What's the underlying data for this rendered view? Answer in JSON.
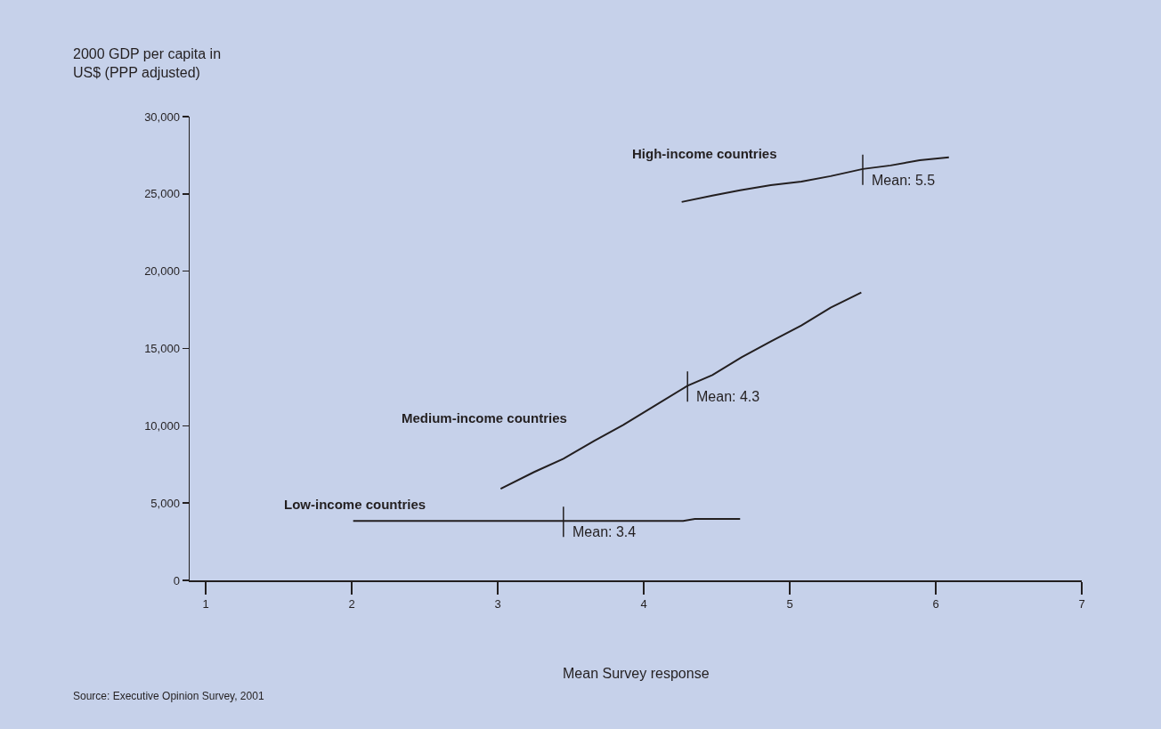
{
  "chart_data": {
    "type": "line",
    "xlabel": "Mean Survey response",
    "ylabel": "2000 GDP per capita in\nUS$ (PPP adjusted)",
    "series": [
      {
        "name": "High-income countries",
        "color": "#231f20",
        "x": [
          4.26,
          4.47,
          4.66,
          4.87,
          5.08,
          5.28,
          5.5,
          5.69,
          5.89,
          6.09
        ],
        "values": [
          24480,
          24890,
          25230,
          25570,
          25800,
          26150,
          26610,
          26840,
          27180,
          27360
        ]
      },
      {
        "name": "Medium-income countries",
        "color": "#231f20",
        "x": [
          3.02,
          3.25,
          3.45,
          3.66,
          3.86,
          4.06,
          4.3,
          4.47,
          4.67,
          4.87,
          5.08,
          5.28,
          5.49
        ],
        "values": [
          5920,
          7010,
          7870,
          9020,
          10060,
          11210,
          12590,
          13280,
          14430,
          15460,
          16490,
          17640,
          18620
        ]
      },
      {
        "name": "Low-income countries",
        "color": "#231f20",
        "x": [
          2.01,
          4.27,
          4.35,
          4.66
        ],
        "values": [
          3850,
          3850,
          3970,
          3970
        ]
      }
    ],
    "annotations": [
      {
        "text": "Mean: 5.5",
        "x": 5.5,
        "y": 26610
      },
      {
        "text": "Mean: 4.3",
        "x": 4.3,
        "y": 12590
      },
      {
        "text": "Mean: 3.4",
        "x": 3.45,
        "y": 3850
      },
      "Source: Executive Opinion Survey, 2001"
    ],
    "xlim": [
      0.89,
      7
    ],
    "xticks": [
      1,
      2,
      3,
      4,
      5,
      6,
      7
    ],
    "ylim": [
      0,
      30000
    ],
    "yticks": [
      {
        "value": 0,
        "label": "0"
      },
      {
        "value": 5000,
        "label": "5,000"
      },
      {
        "value": 10000,
        "label": "10,000"
      },
      {
        "value": 15000,
        "label": "15,000"
      },
      {
        "value": 20000,
        "label": "20,000"
      },
      {
        "value": 25000,
        "label": "25,000"
      },
      {
        "value": 30000,
        "label": "30,000"
      }
    ],
    "grid": false,
    "legend": false,
    "marker": "none",
    "line_style": "solid"
  }
}
